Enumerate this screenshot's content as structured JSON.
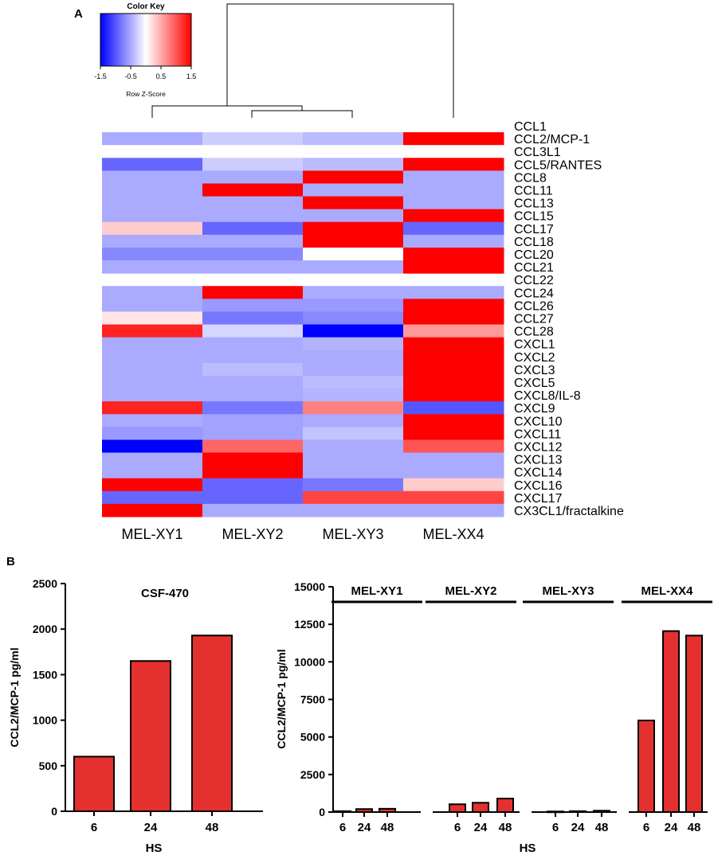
{
  "panel_a": {
    "label": "A",
    "color_key": {
      "title": "Color Key",
      "xlabel": "Row Z-Score",
      "ticks": [
        "-1.5",
        "-0.5",
        "0.5",
        "1.5"
      ],
      "range": [
        -1.5,
        1.5
      ],
      "colors": [
        "#0000ff",
        "#ffffff",
        "#ff0000"
      ]
    }
  },
  "panel_b": {
    "label": "B"
  },
  "chart_data": [
    {
      "type": "heatmap",
      "title": "",
      "columns": [
        "MEL-XY1",
        "MEL-XY2",
        "MEL-XY3",
        "MEL-XX4"
      ],
      "rows": [
        "CCL1",
        "CCL2/MCP-1",
        "CCL3L1",
        "CCL5/RANTES",
        "CCL8",
        "CCL11",
        "CCL13",
        "CCL15",
        "CCL17",
        "CCL18",
        "CCL20",
        "CCL21",
        "CCL22",
        "CCL24",
        "CCL26",
        "CCL27",
        "CCL28",
        "CXCL1",
        "CXCL2",
        "CXCL3",
        "CXCL5",
        "CXCL8/IL-8",
        "CXCL9",
        "CXCL10",
        "CXCL11",
        "CXCL12",
        "CXCL13",
        "CXCL14",
        "CXCL16",
        "CXCL17",
        "CX3CL1/fractalkine"
      ],
      "values": [
        [
          null,
          null,
          null,
          null
        ],
        [
          -0.5,
          -0.3,
          -0.4,
          1.5
        ],
        [
          0,
          0,
          0,
          0
        ],
        [
          -0.9,
          -0.3,
          -0.4,
          1.5
        ],
        [
          -0.5,
          -0.5,
          1.5,
          -0.5
        ],
        [
          -0.5,
          1.5,
          -0.5,
          -0.5
        ],
        [
          -0.5,
          -0.5,
          1.5,
          -0.5
        ],
        [
          -0.5,
          -0.5,
          -0.5,
          1.5
        ],
        [
          0.3,
          -0.9,
          1.5,
          -0.9
        ],
        [
          -0.5,
          -0.5,
          1.5,
          -0.5
        ],
        [
          -0.7,
          -0.7,
          0,
          1.5
        ],
        [
          -0.5,
          -0.5,
          -0.5,
          1.5
        ],
        [
          null,
          null,
          null,
          null
        ],
        [
          -0.5,
          1.5,
          -0.5,
          -0.5
        ],
        [
          -0.5,
          -0.6,
          -0.6,
          1.5
        ],
        [
          0.15,
          -0.8,
          -0.7,
          1.5
        ],
        [
          1.3,
          -0.25,
          -1.5,
          0.6
        ],
        [
          -0.5,
          -0.5,
          -0.45,
          1.5
        ],
        [
          -0.5,
          -0.5,
          -0.5,
          1.5
        ],
        [
          -0.5,
          -0.4,
          -0.5,
          1.5
        ],
        [
          -0.5,
          -0.5,
          -0.4,
          1.5
        ],
        [
          -0.5,
          -0.5,
          -0.45,
          1.5
        ],
        [
          1.3,
          -0.8,
          0.75,
          -1.0
        ],
        [
          -0.5,
          -0.55,
          -0.5,
          1.5
        ],
        [
          -0.6,
          -0.55,
          -0.35,
          1.5
        ],
        [
          -1.5,
          0.9,
          -0.5,
          1.0
        ],
        [
          -0.5,
          1.5,
          -0.5,
          -0.5
        ],
        [
          -0.5,
          1.5,
          -0.5,
          -0.5
        ],
        [
          1.5,
          -0.9,
          -0.8,
          0.3
        ],
        [
          -0.9,
          -0.9,
          1.1,
          1.1
        ],
        [
          1.5,
          -0.5,
          -0.5,
          -0.5
        ]
      ],
      "dendrogram": "MEL-XX4 separates from (MEL-XY1, (MEL-XY2, MEL-XY3))"
    },
    {
      "type": "bar",
      "title": "CSF-470",
      "categories": [
        "6",
        "24",
        "48"
      ],
      "values": [
        600,
        1650,
        1930
      ],
      "xlabel": "HS",
      "ylabel": "CCL2/MCP-1 pg/ml",
      "ylim": [
        0,
        2500
      ],
      "yticks": [
        "0",
        "500",
        "1000",
        "1500",
        "2000",
        "2500"
      ],
      "color": "#e4302e"
    },
    {
      "type": "bar",
      "title": "",
      "groups": [
        "MEL-XY1",
        "MEL-XY2",
        "MEL-XY3",
        "MEL-XX4"
      ],
      "categories": [
        "6",
        "24",
        "48"
      ],
      "series": [
        {
          "name": "MEL-XY1",
          "values": [
            60,
            200,
            220
          ]
        },
        {
          "name": "MEL-XY2",
          "values": [
            520,
            620,
            900
          ]
        },
        {
          "name": "MEL-XY3",
          "values": [
            40,
            60,
            90
          ]
        },
        {
          "name": "MEL-XX4",
          "values": [
            6100,
            12050,
            11750
          ]
        }
      ],
      "xlabel": "HS",
      "ylabel": "CCL2/MCP-1 pg/ml",
      "ylim": [
        0,
        15000
      ],
      "yticks": [
        "0",
        "2500",
        "5000",
        "7500",
        "10000",
        "12500",
        "15000"
      ],
      "color": "#e4302e"
    }
  ]
}
